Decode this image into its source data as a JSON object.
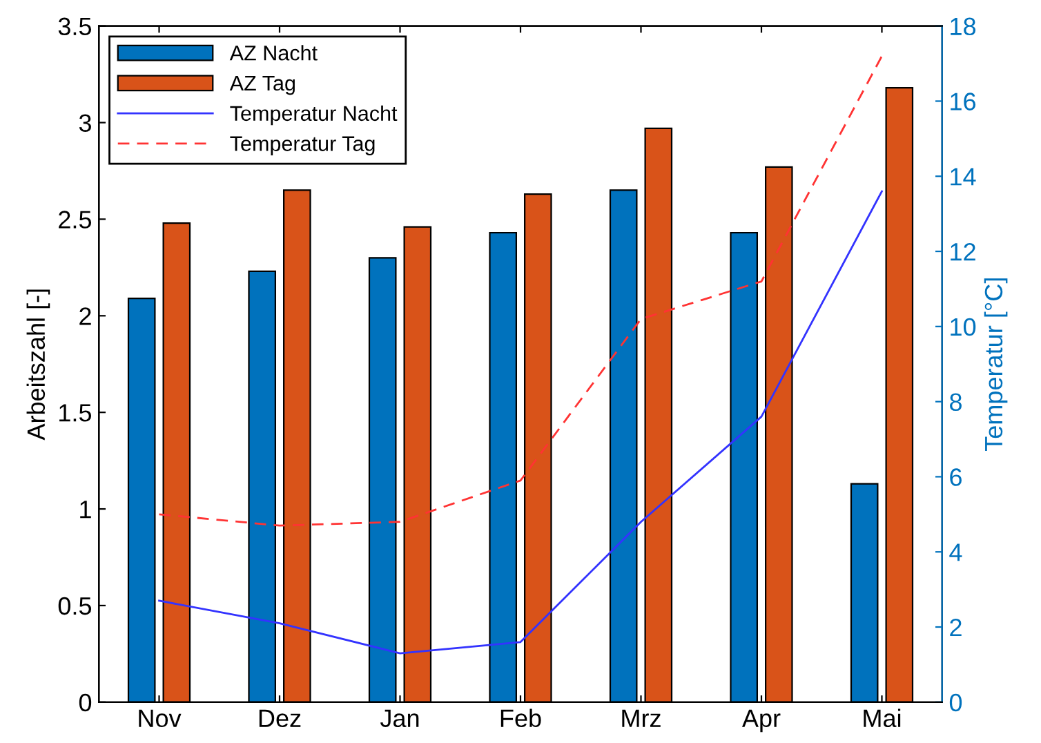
{
  "chart_data": {
    "type": "bar",
    "categories": [
      "Nov",
      "Dez",
      "Jan",
      "Feb",
      "Mrz",
      "Apr",
      "Mai"
    ],
    "ylabel": "Arbeitszahl [-]",
    "y2label": "Temperatur [°C]",
    "ylim": [
      0,
      3.5
    ],
    "yticks": [
      0,
      0.5,
      1,
      1.5,
      2,
      2.5,
      3,
      3.5
    ],
    "y2lim": [
      0,
      18
    ],
    "y2ticks": [
      0,
      2,
      4,
      6,
      8,
      10,
      12,
      14,
      16,
      18
    ],
    "legend": "top left",
    "grid": false,
    "series": [
      {
        "name": "AZ Nacht",
        "color": "#0072bd",
        "values": [
          2.09,
          2.23,
          2.3,
          2.43,
          2.65,
          2.43,
          1.13
        ]
      },
      {
        "name": "AZ Tag",
        "color": "#d95319",
        "values": [
          2.48,
          2.65,
          2.46,
          2.63,
          2.97,
          2.77,
          3.18
        ]
      },
      {
        "name": "Temperatur Nacht",
        "type": "line",
        "axis": "y2",
        "color": "#3333ff",
        "line_style": "solid",
        "values": [
          2.7,
          2.1,
          1.3,
          1.6,
          4.8,
          7.6,
          13.6
        ]
      },
      {
        "name": "Temperatur Tag",
        "type": "line",
        "axis": "y2",
        "color": "#ff3333",
        "line_style": "dashed",
        "values": [
          5.0,
          4.7,
          4.8,
          5.9,
          10.2,
          11.2,
          17.2
        ]
      }
    ]
  }
}
